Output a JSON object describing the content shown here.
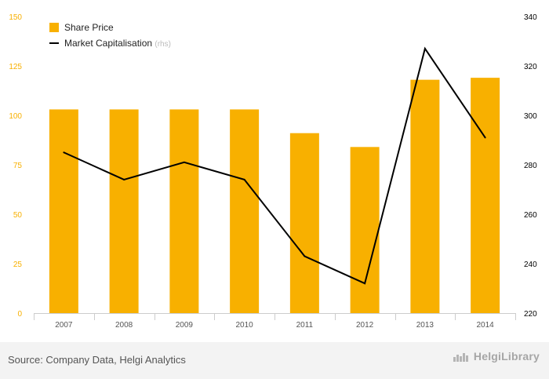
{
  "chart_data": {
    "type": "bar+line",
    "categories": [
      "2007",
      "2008",
      "2009",
      "2010",
      "2011",
      "2012",
      "2013",
      "2014"
    ],
    "series": [
      {
        "name": "Share Price",
        "axis": "left",
        "kind": "bar",
        "color": "#f8b000",
        "values": [
          103,
          103,
          103,
          103,
          91,
          84,
          118,
          119
        ]
      },
      {
        "name": "Market Capitalisation",
        "axis": "right",
        "kind": "line",
        "color": "#000000",
        "values": [
          285,
          274,
          281,
          274,
          243,
          232,
          327,
          291
        ]
      }
    ],
    "legend": {
      "bar_label": "Share Price",
      "line_label": "Market Capitalisation",
      "line_suffix": "(rhs)",
      "placement": "top-left"
    },
    "left_axis": {
      "min": 0,
      "max": 150,
      "ticks": [
        0,
        25,
        50,
        75,
        100,
        125,
        150
      ],
      "color": "#f8b000"
    },
    "right_axis": {
      "min": 220,
      "max": 340,
      "ticks": [
        220,
        240,
        260,
        280,
        300,
        320,
        340
      ],
      "color": "#000000"
    },
    "grid": false
  },
  "footer": {
    "source": "Source: Company Data, Helgi Analytics",
    "brand": "HelgiLibrary"
  }
}
